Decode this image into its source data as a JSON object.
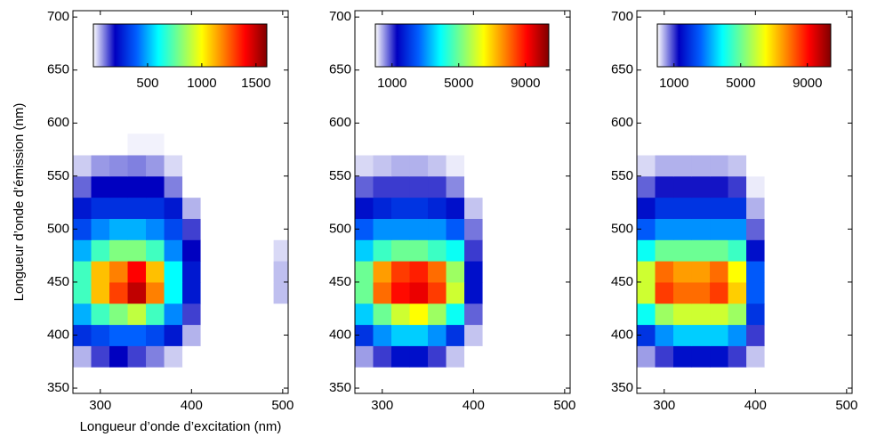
{
  "chart_data": [
    {
      "type": "heatmap",
      "xlabel": "Longueur d’onde d’excitation (nm)",
      "ylabel": "Longueur d’onde d’émission (nm)",
      "xlim": [
        270,
        506
      ],
      "ylim": [
        345,
        706
      ],
      "xticks": [
        300,
        400,
        500
      ],
      "yticks": [
        350,
        400,
        450,
        500,
        550,
        600,
        650,
        700
      ],
      "colormap": [
        "#ffffff",
        "#0000c0",
        "#0060ff",
        "#00ffff",
        "#80ff80",
        "#ffff00",
        "#ff8000",
        "#ff0000",
        "#800000"
      ],
      "colorbar": {
        "clim": [
          0,
          1600
        ],
        "ticks": [
          500,
          1000,
          1500
        ]
      },
      "x": [
        280,
        300,
        320,
        340,
        360,
        380,
        400,
        420,
        440,
        460,
        480,
        500
      ],
      "y": [
        380,
        400,
        420,
        440,
        460,
        480,
        500,
        520,
        540,
        560,
        580
      ],
      "values": [
        [
          60,
          150,
          200,
          150,
          100,
          40,
          0,
          0,
          0,
          0,
          0,
          0
        ],
        [
          300,
          350,
          400,
          400,
          350,
          250,
          60,
          0,
          0,
          0,
          0,
          0
        ],
        [
          500,
          700,
          800,
          900,
          700,
          450,
          150,
          0,
          0,
          0,
          0,
          0
        ],
        [
          700,
          1100,
          1300,
          1500,
          1200,
          600,
          250,
          0,
          0,
          0,
          0,
          50
        ],
        [
          700,
          1100,
          1200,
          1400,
          1100,
          600,
          250,
          0,
          0,
          0,
          0,
          50
        ],
        [
          500,
          700,
          800,
          800,
          700,
          450,
          200,
          0,
          0,
          0,
          0,
          30
        ],
        [
          350,
          450,
          500,
          500,
          450,
          350,
          150,
          0,
          0,
          0,
          0,
          0
        ],
        [
          250,
          300,
          300,
          300,
          300,
          250,
          60,
          0,
          0,
          0,
          0,
          0
        ],
        [
          120,
          200,
          200,
          200,
          200,
          100,
          0,
          0,
          0,
          0,
          0,
          0
        ],
        [
          40,
          80,
          90,
          100,
          80,
          30,
          0,
          0,
          0,
          0,
          0,
          0
        ],
        [
          0,
          0,
          0,
          10,
          10,
          0,
          0,
          0,
          0,
          0,
          0,
          0
        ]
      ]
    },
    {
      "type": "heatmap",
      "xlim": [
        270,
        506
      ],
      "ylim": [
        345,
        706
      ],
      "xticks": [
        300,
        400,
        500
      ],
      "yticks": [
        350,
        400,
        450,
        500,
        550,
        600,
        650,
        700
      ],
      "colormap": [
        "#ffffff",
        "#0000c0",
        "#0060ff",
        "#00ffff",
        "#80ff80",
        "#ffff00",
        "#ff8000",
        "#ff0000",
        "#800000"
      ],
      "colorbar": {
        "clim": [
          0,
          10400
        ],
        "ticks": [
          1000,
          5000,
          9000
        ]
      },
      "x": [
        280,
        300,
        320,
        340,
        360,
        380,
        400,
        420,
        440,
        460,
        480,
        500
      ],
      "y": [
        380,
        400,
        420,
        440,
        460,
        480,
        500,
        520,
        540,
        560,
        580
      ],
      "values": [
        [
          500,
          1000,
          1500,
          1500,
          1000,
          300,
          0,
          0,
          0,
          0,
          0,
          0
        ],
        [
          2000,
          3000,
          3500,
          3500,
          3000,
          2000,
          300,
          0,
          0,
          0,
          0,
          0
        ],
        [
          3500,
          5000,
          6000,
          6500,
          5500,
          4000,
          800,
          0,
          0,
          0,
          0,
          0
        ],
        [
          5000,
          8000,
          9000,
          9300,
          8500,
          6000,
          1500,
          0,
          0,
          0,
          0,
          0
        ],
        [
          5000,
          7500,
          8500,
          8800,
          8000,
          5500,
          1500,
          0,
          0,
          0,
          0,
          0
        ],
        [
          3500,
          4500,
          5000,
          5000,
          4500,
          4000,
          1000,
          0,
          0,
          0,
          0,
          0
        ],
        [
          2500,
          3000,
          3000,
          3000,
          3000,
          2500,
          700,
          0,
          0,
          0,
          0,
          0
        ],
        [
          1500,
          1800,
          2000,
          2000,
          1800,
          1500,
          300,
          0,
          0,
          0,
          0,
          0
        ],
        [
          800,
          1000,
          1000,
          1000,
          1000,
          600,
          0,
          0,
          0,
          0,
          0,
          0
        ],
        [
          200,
          300,
          400,
          400,
          300,
          100,
          0,
          0,
          0,
          0,
          0,
          0
        ],
        [
          0,
          0,
          0,
          0,
          0,
          0,
          0,
          0,
          0,
          0,
          0,
          0
        ]
      ]
    },
    {
      "type": "heatmap",
      "xlim": [
        270,
        506
      ],
      "ylim": [
        345,
        706
      ],
      "xticks": [
        300,
        400,
        500
      ],
      "yticks": [
        350,
        400,
        450,
        500,
        550,
        600,
        650,
        700
      ],
      "colormap": [
        "#ffffff",
        "#0000c0",
        "#0060ff",
        "#00ffff",
        "#80ff80",
        "#ffff00",
        "#ff8000",
        "#ff0000",
        "#800000"
      ],
      "colorbar": {
        "clim": [
          0,
          10400
        ],
        "ticks": [
          1000,
          5000,
          9000
        ]
      },
      "x": [
        280,
        300,
        320,
        340,
        360,
        380,
        400,
        420,
        440,
        460,
        480,
        500
      ],
      "y": [
        380,
        400,
        420,
        440,
        460,
        480,
        500,
        520,
        540,
        560,
        580
      ],
      "values": [
        [
          500,
          1000,
          1500,
          1500,
          1500,
          1000,
          300,
          0,
          0,
          0,
          0,
          0
        ],
        [
          2000,
          3000,
          3500,
          3500,
          3500,
          3000,
          1000,
          0,
          0,
          0,
          0,
          0
        ],
        [
          4000,
          5500,
          6000,
          6000,
          6000,
          5500,
          2000,
          0,
          0,
          0,
          0,
          0
        ],
        [
          6000,
          8500,
          8000,
          8000,
          8500,
          7000,
          2500,
          0,
          0,
          0,
          0,
          0
        ],
        [
          6000,
          8000,
          7500,
          7500,
          8000,
          6500,
          2500,
          0,
          0,
          0,
          0,
          0
        ],
        [
          4000,
          5000,
          5000,
          5000,
          5000,
          4500,
          1500,
          0,
          0,
          0,
          0,
          0
        ],
        [
          2500,
          3000,
          3000,
          3000,
          3000,
          3000,
          800,
          0,
          0,
          0,
          0,
          0
        ],
        [
          1500,
          2000,
          2000,
          2000,
          2000,
          2000,
          400,
          0,
          0,
          0,
          0,
          0
        ],
        [
          800,
          1200,
          1200,
          1200,
          1200,
          1000,
          100,
          0,
          0,
          0,
          0,
          0
        ],
        [
          200,
          400,
          400,
          400,
          400,
          300,
          0,
          0,
          0,
          0,
          0,
          0
        ],
        [
          0,
          0,
          0,
          0,
          0,
          0,
          0,
          0,
          0,
          0,
          0,
          0
        ]
      ]
    }
  ]
}
